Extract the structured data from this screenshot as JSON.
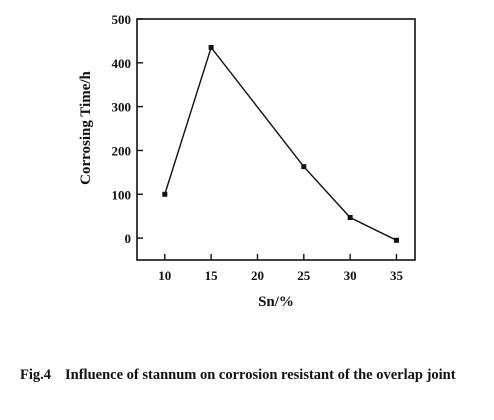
{
  "chart_data": {
    "type": "line",
    "x": [
      10,
      15,
      25,
      30,
      35
    ],
    "series": [
      {
        "values": [
          100,
          435,
          163,
          47,
          -5
        ]
      }
    ],
    "xlabel": "Sn/%",
    "ylabel": "Corrosing Time/h",
    "xticks": [
      "10",
      "15",
      "20",
      "25",
      "30",
      "35"
    ],
    "yticks": [
      "0",
      "100",
      "200",
      "300",
      "400",
      "500"
    ],
    "xlim": [
      7,
      37
    ],
    "ylim": [
      -50,
      500
    ],
    "grid": false,
    "line_color": "#111111"
  },
  "caption": {
    "figure_number": "Fig.4",
    "text": "Influence of stannum on corrosion resistant of the overlap joint"
  }
}
